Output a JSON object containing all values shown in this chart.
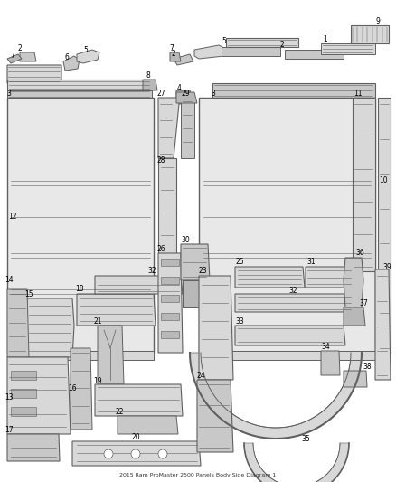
{
  "title": "2015 Ram ProMaster 2500 Panels Body Side Diagram 1",
  "bg": "#f5f5f5",
  "lc": "#606060",
  "fc_light": "#e8e8e8",
  "fc_mid": "#d8d8d8",
  "fc_dark": "#c8c8c8",
  "fc_xdark": "#b8b8b8",
  "label_fs": 5.5,
  "title_fs": 4.5
}
